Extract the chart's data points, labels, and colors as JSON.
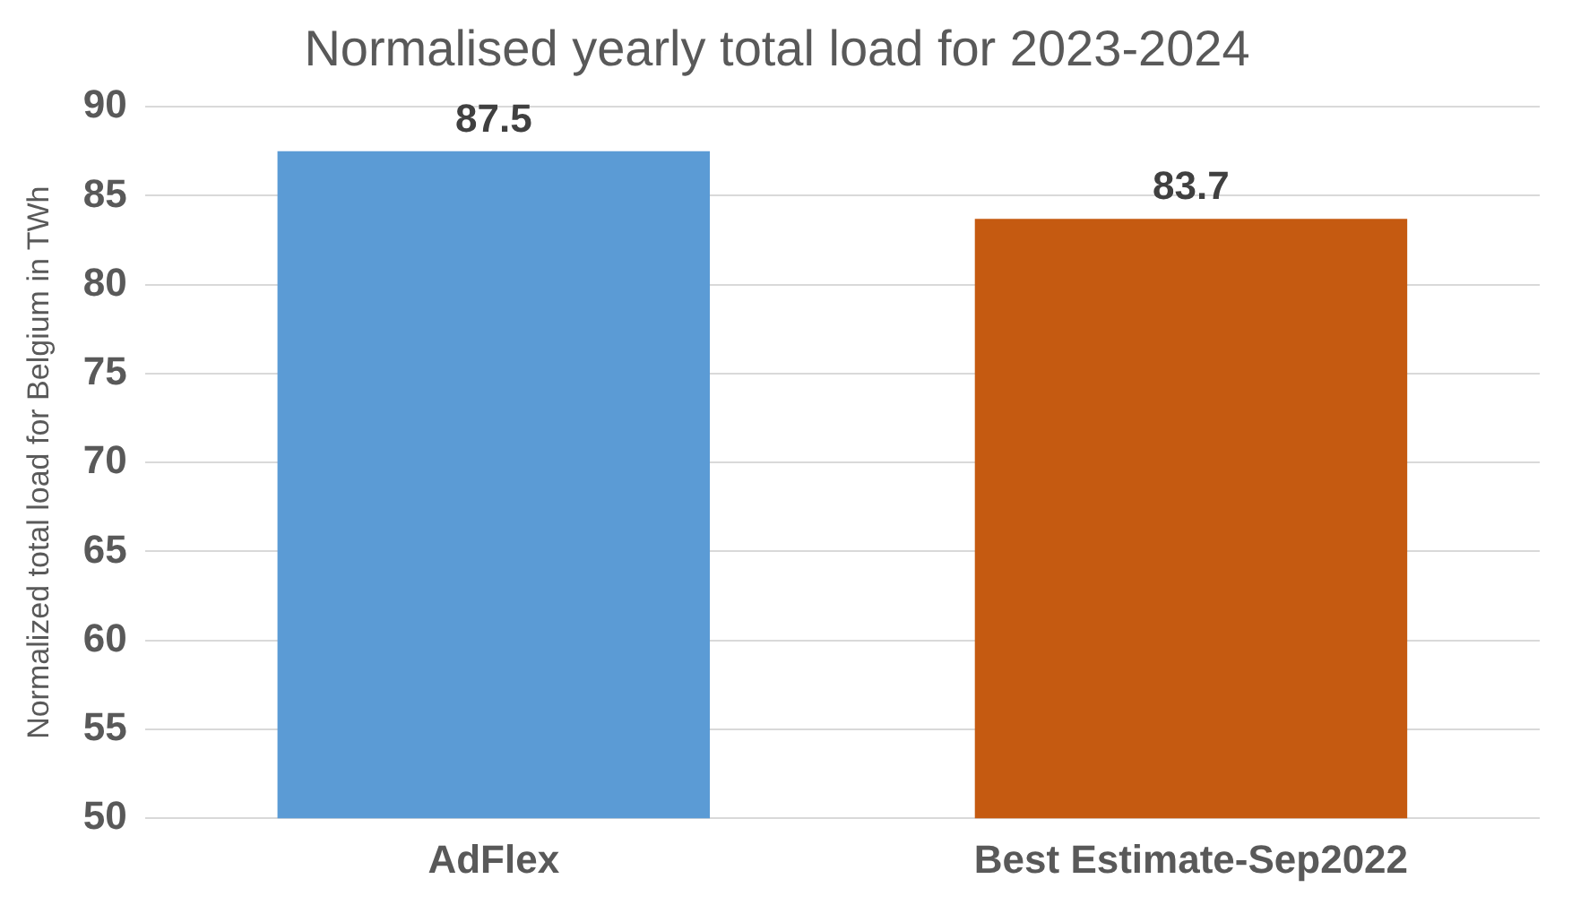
{
  "chart_data": {
    "type": "bar",
    "title": "Normalised yearly total load for 2023-2024",
    "ylabel": "Normalized total load for Belgium in TWh",
    "categories": [
      "AdFlex",
      "Best Estimate-Sep2022"
    ],
    "values": [
      87.5,
      83.7
    ],
    "colors": [
      "#5b9bd5",
      "#c55a11"
    ],
    "ylim": [
      50,
      90
    ],
    "yticks": [
      50,
      55,
      60,
      65,
      70,
      75,
      80,
      85,
      90
    ],
    "grid": "y",
    "data_labels": true,
    "legend": false
  }
}
